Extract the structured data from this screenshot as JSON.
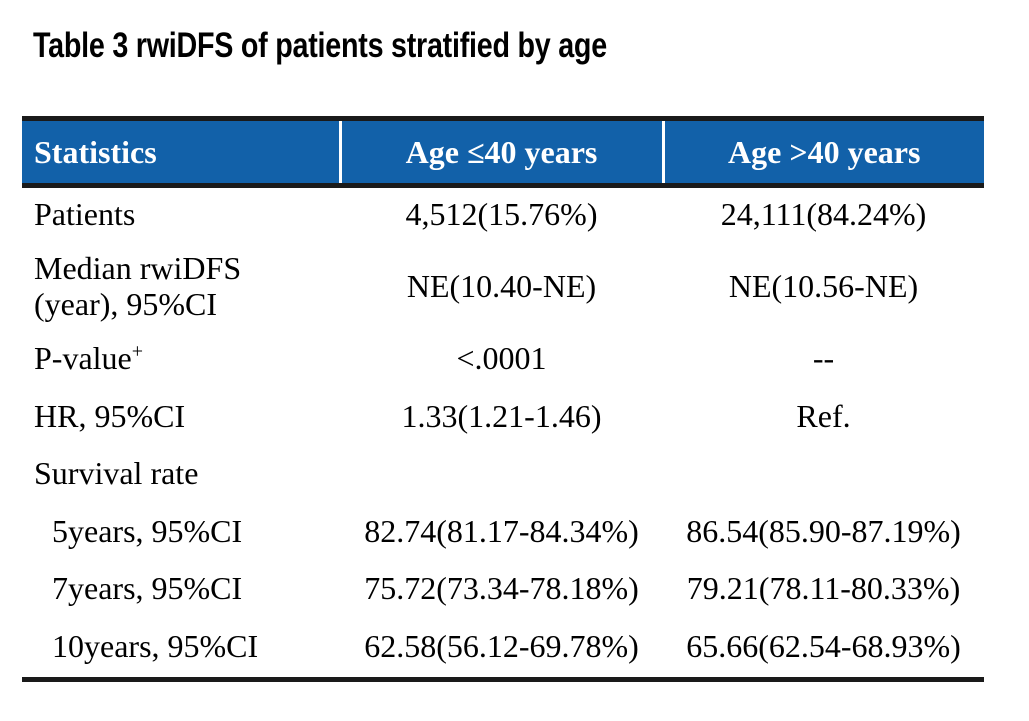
{
  "page": {
    "title": "Table 3 rwiDFS of patients stratified by age"
  },
  "table": {
    "columns": [
      "Statistics",
      "Age ≤40 years",
      "Age >40 years"
    ],
    "rows": [
      {
        "label": "Patients",
        "age_le40": "4,512(15.76%)",
        "age_gt40": "24,111(84.24%)"
      },
      {
        "label": "Median rwiDFS",
        "label2": "(year), 95%CI",
        "age_le40": "NE(10.40-NE)",
        "age_gt40": "NE(10.56-NE)"
      },
      {
        "label": "P-value",
        "sup": "+",
        "age_le40": "<.0001",
        "age_gt40": "--"
      },
      {
        "label": "HR, 95%CI",
        "age_le40": "1.33(1.21-1.46)",
        "age_gt40": "Ref."
      },
      {
        "label": "Survival rate",
        "age_le40": "",
        "age_gt40": ""
      },
      {
        "label": "5years, 95%CI",
        "age_le40": "82.74(81.17-84.34%)",
        "age_gt40": "86.54(85.90-87.19%)"
      },
      {
        "label": "7years, 95%CI",
        "age_le40": "75.72(73.34-78.18%)",
        "age_gt40": "79.21(78.11-80.33%)"
      },
      {
        "label": "10years, 95%CI",
        "age_le40": "62.58(56.12-69.78%)",
        "age_gt40": "65.66(62.54-68.93%)"
      }
    ]
  },
  "colors": {
    "header_bg": "#1261A9",
    "header_text": "#FFFFFF",
    "rule_black": "#1A1A1A",
    "body_text": "#000000",
    "page_bg": "#FFFFFF"
  }
}
